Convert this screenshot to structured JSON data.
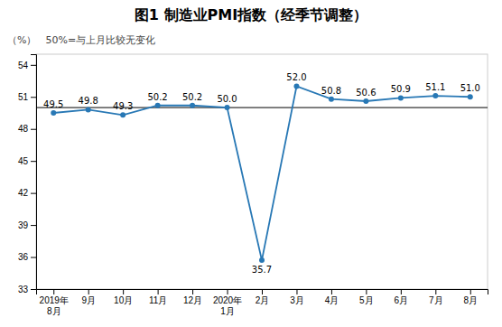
{
  "chart_data": {
    "type": "line",
    "title": "图1  制造业PMI指数（经季节调整）",
    "y_label": "（%）",
    "annotations": [
      "50%=与上月比较无变化"
    ],
    "categories": [
      "2019年\n8月",
      "9月",
      "10月",
      "11月",
      "12月",
      "2020年\n1月",
      "2月",
      "3月",
      "4月",
      "5月",
      "6月",
      "7月",
      "8月"
    ],
    "values": [
      49.5,
      49.8,
      49.3,
      50.2,
      50.2,
      50.0,
      35.7,
      52.0,
      50.8,
      50.6,
      50.9,
      51.1,
      51.0
    ],
    "value_labels": [
      "49.5",
      "49.8",
      "49.3",
      "50.2",
      "50.2",
      "50.0",
      "35.7",
      "52.0",
      "50.8",
      "50.6",
      "50.9",
      "51.1",
      "51.0"
    ],
    "data_labels": true,
    "color": "#2878b5",
    "marker": "circle",
    "reference_line": {
      "value": 50.0,
      "color": "#000000"
    },
    "ylim": [
      33,
      55
    ],
    "yticks": [
      33,
      36,
      39,
      42,
      45,
      48,
      51,
      54
    ],
    "grid": false
  }
}
